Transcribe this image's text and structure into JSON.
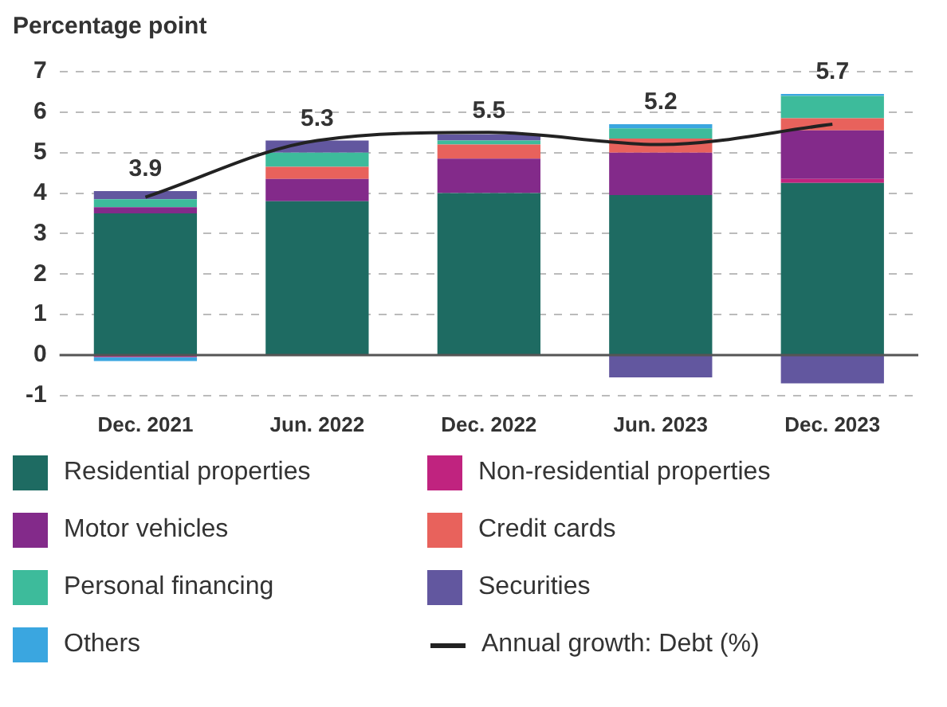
{
  "chart_data": {
    "type": "bar",
    "stacked": true,
    "ylabel": "Percentage point",
    "categories": [
      "Dec. 2021",
      "Jun. 2022",
      "Dec. 2022",
      "Jun. 2023",
      "Dec. 2023"
    ],
    "series": [
      {
        "name": "Residential properties",
        "color": "#1e6b62",
        "values": [
          3.5,
          3.8,
          4.0,
          3.95,
          4.25
        ]
      },
      {
        "name": "Non-residential properties",
        "color": "#c0237f",
        "values": [
          -0.05,
          null,
          null,
          null,
          0.1
        ]
      },
      {
        "name": "Motor vehicles",
        "color": "#832a8a",
        "values": [
          0.15,
          0.55,
          0.85,
          1.05,
          1.2
        ]
      },
      {
        "name": "Credit cards",
        "color": "#e8625c",
        "values": [
          null,
          0.3,
          0.35,
          0.35,
          0.3
        ]
      },
      {
        "name": "Personal financing",
        "color": "#3dbb9b",
        "values": [
          0.2,
          0.35,
          0.1,
          0.25,
          0.55
        ]
      },
      {
        "name": "Securities",
        "color": "#62579f",
        "values": [
          0.2,
          0.3,
          0.15,
          -0.55,
          -0.7
        ]
      },
      {
        "name": "Others",
        "color": "#3aa6e0",
        "values": [
          -0.1,
          null,
          null,
          0.1,
          0.05
        ]
      },
      {
        "name": "Annual growth: Debt (%)",
        "type": "line",
        "color": "#222222",
        "values": [
          3.9,
          5.3,
          5.5,
          5.2,
          5.7
        ],
        "value_labels": [
          "3.9",
          "5.3",
          "5.5",
          "5.2",
          "5.7"
        ]
      }
    ],
    "ylim": [
      -1,
      7
    ],
    "yticks": [
      -1,
      0,
      1,
      2,
      3,
      4,
      5,
      6,
      7
    ],
    "grid": "y",
    "legend": "bottom",
    "marker": "none"
  }
}
